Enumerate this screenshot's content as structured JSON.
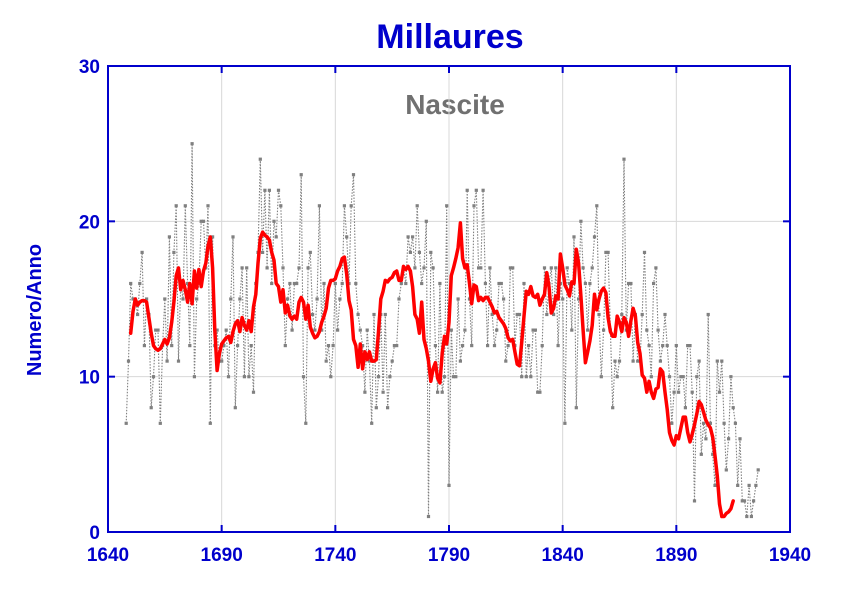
{
  "chart_data": {
    "type": "line",
    "title": "Millaures",
    "subtitle": "Nascite",
    "xlabel": "",
    "ylabel": "Numero/Anno",
    "xlim": [
      1640,
      1940
    ],
    "ylim": [
      0,
      30
    ],
    "xticks": [
      "1640",
      "1690",
      "1740",
      "1790",
      "1840",
      "1890",
      "1940"
    ],
    "yticks": [
      "0",
      "10",
      "20",
      "30"
    ],
    "grid": true,
    "colors": {
      "title": "#0000cc",
      "subtitle": "#707070",
      "axis": "#0000cc",
      "raw": "#808080",
      "smooth": "#ff0000"
    },
    "series": [
      {
        "kind": "raw",
        "x_start": 1648,
        "values": [
          7,
          11,
          16,
          15,
          15,
          14,
          16,
          18,
          12,
          15,
          14,
          8,
          10,
          13,
          13,
          7,
          12,
          15,
          11,
          19,
          12,
          18,
          21,
          11,
          16,
          15,
          21,
          16,
          12,
          25,
          10,
          15,
          16,
          20,
          20,
          17,
          21,
          7,
          19,
          12,
          13,
          11,
          11,
          12,
          13,
          10,
          15,
          19,
          8,
          12,
          15,
          17,
          10,
          17,
          10,
          12,
          9,
          16,
          18,
          24,
          18,
          22,
          17,
          22,
          16,
          20,
          19,
          22,
          21,
          17,
          12,
          15,
          16,
          13,
          16,
          16,
          17,
          23,
          10,
          7,
          17,
          18,
          14,
          13,
          15,
          21,
          13,
          16,
          11,
          12,
          10,
          12,
          16,
          13,
          15,
          16,
          21,
          19,
          16,
          21,
          23,
          16,
          14,
          13,
          12,
          9,
          13,
          11,
          7,
          14,
          8,
          10,
          14,
          9,
          14,
          8,
          10,
          11,
          12,
          12,
          15,
          16,
          17,
          16,
          19,
          18,
          19,
          17,
          21,
          18,
          16,
          17,
          20,
          1,
          18,
          17,
          12,
          9,
          16,
          9,
          10,
          21,
          3,
          13,
          10,
          10,
          15,
          11,
          12,
          13,
          22,
          15,
          12,
          21,
          22,
          17,
          17,
          22,
          16,
          12,
          17,
          14,
          12,
          13,
          16,
          16,
          15,
          11,
          12,
          17,
          17,
          12,
          14,
          14,
          10,
          16,
          10,
          12,
          10,
          13,
          13,
          9,
          9,
          12,
          17,
          14,
          16,
          17,
          14,
          17,
          12,
          16,
          15,
          7,
          17,
          16,
          13,
          19,
          8,
          15,
          20,
          17,
          16,
          13,
          16,
          17,
          19,
          21,
          14,
          10,
          13,
          18,
          18,
          13,
          8,
          11,
          10,
          11,
          14,
          24,
          13,
          16,
          16,
          11,
          14,
          11,
          11,
          14,
          18,
          13,
          12,
          10,
          16,
          17,
          13,
          11,
          12,
          14,
          12,
          10,
          7,
          9,
          12,
          9,
          10,
          10,
          8,
          12,
          12,
          9,
          2,
          10,
          11,
          5,
          7,
          6,
          14,
          7,
          5,
          3,
          11,
          9,
          11,
          7,
          4,
          6,
          10,
          8,
          7,
          3,
          6,
          2,
          2,
          1,
          3,
          1,
          2,
          3,
          4
        ]
      },
      {
        "kind": "smoothed",
        "x_start": 1650,
        "values": [
          12.8,
          14.2,
          15,
          14.6,
          14.8,
          14.9,
          14.9,
          14.8,
          13.8,
          12.8,
          12,
          11.8,
          11.7,
          11.8,
          12.1,
          12.4,
          12.1,
          12.5,
          13.5,
          14.8,
          16.5,
          17,
          15.6,
          16.2,
          15.6,
          14.8,
          16,
          14.7,
          16.8,
          15.7,
          16.9,
          15.8,
          16.8,
          17.3,
          18.4,
          19,
          17,
          13,
          10.4,
          11.5,
          12.1,
          12.3,
          12.5,
          12.6,
          12.2,
          12.9,
          13.4,
          13.6,
          12.9,
          13.8,
          13.3,
          13,
          13.6,
          12.9,
          14.5,
          15.3,
          17.3,
          18.9,
          19.3,
          19.1,
          19,
          18.8,
          18,
          17.5,
          16,
          15.8,
          14.8,
          15.6,
          14.1,
          14.6,
          13.9,
          13.7,
          13.9,
          13.7,
          14.8,
          15.1,
          14.8,
          13.7,
          14.6,
          13.2,
          12.8,
          12.5,
          12.6,
          12.9,
          13.5,
          13.9,
          14.4,
          15.7,
          16.2,
          16.2,
          16.3,
          16.8,
          17.1,
          17.6,
          17.7,
          16.6,
          14.9,
          14.3,
          12.4,
          12,
          10.6,
          12.1,
          10.5,
          11.6,
          11.1,
          11.6,
          11,
          11,
          11.1,
          12.9,
          15,
          15.5,
          16.2,
          16.1,
          16.3,
          16.4,
          16.7,
          16.8,
          16.2,
          16.2,
          17.1,
          16.9,
          17.1,
          16.8,
          15.8,
          14,
          13.7,
          12.8,
          14.8,
          12.4,
          11.8,
          11,
          9.7,
          10.5,
          10.9,
          9.9,
          9.6,
          11.5,
          12.6,
          12.1,
          13.5,
          16.5,
          17,
          17.6,
          18.3,
          19.9,
          17.6,
          17,
          17.2,
          16,
          14.7,
          15.9,
          15.8,
          14.9,
          15.1,
          14.9,
          15.1,
          15.1,
          14.8,
          14.5,
          14.1,
          14.2,
          13.8,
          13.6,
          13.4,
          13.1,
          12.5,
          12.3,
          12.4,
          11.6,
          10.8,
          10.7,
          12.2,
          13.9,
          15.5,
          15.3,
          15.8,
          15.2,
          15.1,
          15.3,
          14.6,
          15,
          15.3,
          16.7,
          15.8,
          14.1,
          14.4,
          15.2,
          15,
          17.9,
          17,
          15.9,
          15.6,
          15.2,
          16.1,
          16,
          18.2,
          17.3,
          15.2,
          13,
          10.9,
          11.6,
          12.3,
          13.3,
          15.3,
          14.3,
          15,
          15.5,
          15.7,
          15.4,
          13.8,
          12.9,
          12.6,
          12.6,
          13.9,
          13.5,
          12.9,
          13.8,
          13.5,
          12.6,
          13.6,
          14.4,
          13.9,
          12.2,
          11.5,
          10.1,
          9.9,
          9,
          9.7,
          9,
          8.6,
          9.2,
          9.3,
          10.5,
          10.3,
          9,
          7.9,
          6.4,
          5.9,
          5.6,
          6.2,
          6,
          6.7,
          7.4,
          7.4,
          6.4,
          5.8,
          6.3,
          6.9,
          7.6,
          8.4,
          8.2,
          7.7,
          7.2,
          6.9,
          6.7,
          6.1,
          4.9,
          3.6,
          1.8,
          1,
          1,
          1.2,
          1.3,
          1.5,
          2
        ]
      }
    ]
  }
}
